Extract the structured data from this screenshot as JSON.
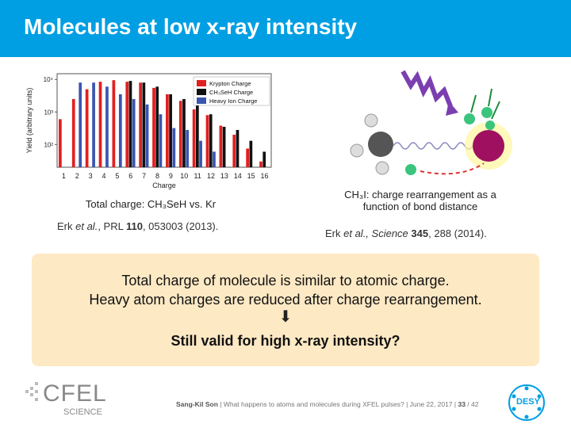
{
  "slide": {
    "title": "Molecules at low x-ray intensity",
    "chart_caption": "Total charge: CH₃SeH vs. Kr",
    "ref_left_authors": "Erk ",
    "ref_left_etal": "et al.",
    "ref_left_journal": ", PRL ",
    "ref_left_vol": "110",
    "ref_left_rest": ", 053003 (2013).",
    "illus_caption_1": "CH₃I: charge rearrangement as a",
    "illus_caption_2": "function of bond distance",
    "ref_right_authors": "Erk ",
    "ref_right_etal": "et al., Science ",
    "ref_right_vol": "345",
    "ref_right_rest": ", 288 (2014).",
    "callout_line1": "Total charge of molecule is similar to atomic charge.",
    "callout_line2": "Heavy atom charges are reduced after charge rearrangement.",
    "callout_arrow": "🡇",
    "callout_question": "Still valid for high x-ray intensity?",
    "footer_author": "Sang-Kil Son",
    "footer_rest": " | What happens to atoms and molecules during XFEL pulses? | June 22, 2017 | ",
    "footer_page": "33",
    "footer_total": " / 42",
    "cfel_logo_text": "CFEL",
    "cfel_logo_sub": "SCIENCE",
    "desy_logo_text": "DESY"
  },
  "colors": {
    "title_bg": "#009fe3",
    "callout_bg": "#fde9c4",
    "kr": "#e02020",
    "ch3seh": "#111111",
    "heavy": "#3a55b0"
  },
  "chart_data": {
    "type": "bar",
    "categories": [
      "1",
      "2",
      "3",
      "4",
      "5",
      "6",
      "7",
      "8",
      "9",
      "10",
      "11",
      "12",
      "13",
      "14",
      "15",
      "16"
    ],
    "xlabel": "Charge",
    "ylabel": "Yield (arbitrary units)",
    "yscale": "log",
    "ylim": [
      20,
      15000
    ],
    "yticks": [
      "10²",
      "10³",
      "10⁴"
    ],
    "legend_position": "top-right",
    "series": [
      {
        "name": "Krypton Charge",
        "values": [
          600,
          2500,
          5000,
          8500,
          9500,
          8500,
          8000,
          5500,
          3500,
          2200,
          1200,
          800,
          380,
          200,
          75,
          30
        ]
      },
      {
        "name": "CH₃SeH Charge",
        "values": [
          null,
          null,
          null,
          null,
          null,
          9000,
          8000,
          6000,
          3500,
          2500,
          1700,
          850,
          350,
          280,
          130,
          60
        ]
      },
      {
        "name": "Heavy Ion Charge",
        "values": [
          null,
          8000,
          8000,
          6000,
          3500,
          2500,
          1700,
          850,
          320,
          280,
          130,
          60,
          null,
          null,
          null,
          null
        ]
      }
    ]
  }
}
